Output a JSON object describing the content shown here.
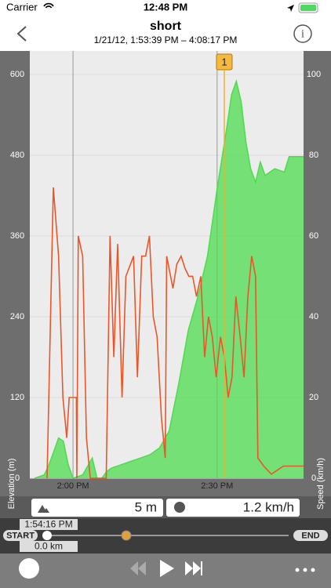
{
  "status_bar": {
    "carrier": "Carrier",
    "time": "12:48 PM"
  },
  "header": {
    "title": "short",
    "subtitle": "1/21/12, 1:53:39 PM – 4:08:17 PM"
  },
  "chart_data": {
    "type": "combo",
    "xlim": [
      831,
      888
    ],
    "xticks": [
      {
        "value": 840,
        "label": "2:00 PM"
      },
      {
        "value": 870,
        "label": "2:30 PM"
      }
    ],
    "ylim": [
      0,
      635
    ],
    "yticks": [
      0,
      120,
      240,
      360,
      480,
      600
    ],
    "y2lim": [
      0,
      105.8
    ],
    "y2ticks": [
      0,
      20,
      40,
      60,
      80,
      100
    ],
    "ylabel": "Elevation (m)",
    "y2label": "Speed (km/h)",
    "grid": true,
    "series": [
      {
        "type": "area",
        "color": "#4ddc4d",
        "axis": "y",
        "x": [
          832,
          834,
          835,
          836,
          837,
          838,
          839,
          840,
          842,
          844,
          845,
          846,
          847,
          848,
          850,
          852,
          854,
          856,
          858,
          860,
          862,
          864,
          866,
          868,
          869,
          870,
          872,
          873,
          874,
          875,
          876,
          877,
          878,
          879,
          880,
          882,
          884,
          885,
          888
        ],
        "values": [
          0,
          5,
          20,
          40,
          60,
          55,
          20,
          0,
          5,
          30,
          0,
          0,
          10,
          15,
          20,
          25,
          30,
          35,
          45,
          70,
          140,
          220,
          270,
          330,
          380,
          430,
          520,
          570,
          590,
          560,
          500,
          460,
          440,
          470,
          450,
          460,
          455,
          478,
          478
        ]
      },
      {
        "type": "line",
        "color": "#e8572a",
        "axis": "y2",
        "x": [
          834.6,
          835.9,
          837.0,
          837.9,
          838.7,
          839.2,
          840.7,
          840.8,
          841.1,
          842.0,
          842.8,
          843.6,
          845.2,
          846.9,
          847.7,
          848.5,
          849.3,
          850.2,
          851.0,
          852.6,
          853.4,
          854.3,
          855.1,
          855.9,
          856.7,
          857.5,
          858.4,
          859.2,
          859.5,
          860.8,
          861.6,
          862.5,
          863.3,
          864.1,
          864.9,
          865.7,
          866.6,
          867.4,
          868.2,
          869.0,
          869.8,
          870.7,
          871.5,
          872.3,
          873.1,
          873.9,
          874.8,
          875.6,
          876.4,
          877.2,
          878.0,
          878.5,
          879.7,
          881.3,
          883.8,
          888
        ],
        "values": [
          0,
          72,
          55,
          20,
          10,
          20,
          20,
          0,
          60,
          55,
          10,
          0,
          0,
          0,
          60,
          30,
          58,
          20,
          50,
          55,
          25,
          55,
          55,
          60,
          40,
          35,
          15,
          5,
          55,
          47,
          53,
          55,
          52,
          50,
          50,
          45,
          50,
          30,
          40,
          35,
          25,
          35,
          30,
          20,
          25,
          45,
          35,
          25,
          45,
          55,
          50,
          5,
          3,
          1,
          3,
          3
        ]
      }
    ],
    "annotations": [
      {
        "x": 871.5,
        "label": "1"
      }
    ]
  },
  "info_bar": {
    "elevation": "5 m",
    "speed": "1.2 km/h"
  },
  "scrubber": {
    "time": "1:54:16 PM",
    "start": "START",
    "distance": "0.0 km",
    "end": "END"
  }
}
